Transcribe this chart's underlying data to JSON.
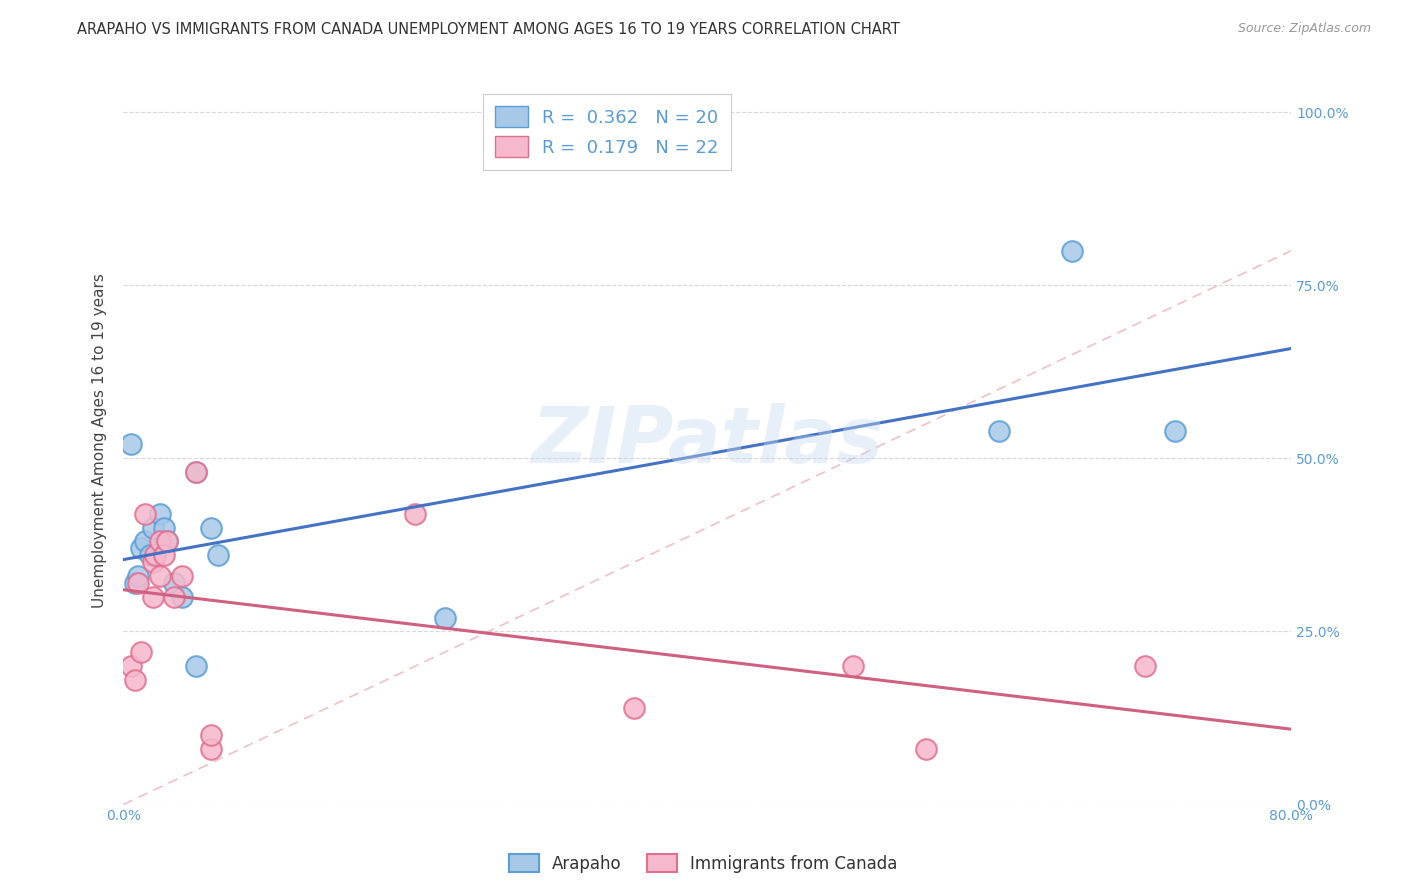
{
  "title": "ARAPAHO VS IMMIGRANTS FROM CANADA UNEMPLOYMENT AMONG AGES 16 TO 19 YEARS CORRELATION CHART",
  "source": "Source: ZipAtlas.com",
  "ylabel": "Unemployment Among Ages 16 to 19 years",
  "background_color": "#ffffff",
  "watermark": "ZIPatlas",
  "xlim": [
    0.0,
    0.8
  ],
  "ylim": [
    0.0,
    1.05
  ],
  "yticks": [
    0.0,
    0.25,
    0.5,
    0.75,
    1.0
  ],
  "ytick_labels": [
    "0.0%",
    "25.0%",
    "50.0%",
    "75.0%",
    "100.0%"
  ],
  "xticks": [
    0.0,
    0.1,
    0.2,
    0.3,
    0.4,
    0.5,
    0.6,
    0.7,
    0.8
  ],
  "xtick_labels": [
    "0.0%",
    "",
    "",
    "",
    "",
    "",
    "",
    "",
    "80.0%"
  ],
  "arapaho_color": "#a8c8e8",
  "arapaho_edge_color": "#5a9fd4",
  "canada_color": "#f5b8cc",
  "canada_edge_color": "#e07090",
  "regression_blue": "#4472c4",
  "regression_pink": "#d06080",
  "diagonal_color": "#cccccc",
  "R_arapaho": 0.362,
  "N_arapaho": 20,
  "R_canada": 0.179,
  "N_canada": 22,
  "legend_label_1": "Arapaho",
  "legend_label_2": "Immigrants from Canada",
  "arapaho_x": [
    0.005,
    0.008,
    0.01,
    0.012,
    0.015,
    0.018,
    0.02,
    0.025,
    0.028,
    0.03,
    0.035,
    0.04,
    0.05,
    0.05,
    0.06,
    0.065,
    0.22,
    0.6,
    0.65,
    0.72
  ],
  "arapaho_y": [
    0.52,
    0.32,
    0.33,
    0.37,
    0.38,
    0.36,
    0.4,
    0.42,
    0.4,
    0.38,
    0.32,
    0.3,
    0.48,
    0.2,
    0.4,
    0.36,
    0.27,
    0.54,
    0.8,
    0.54
  ],
  "canada_x": [
    0.005,
    0.008,
    0.01,
    0.012,
    0.015,
    0.02,
    0.02,
    0.022,
    0.025,
    0.025,
    0.028,
    0.03,
    0.035,
    0.04,
    0.05,
    0.06,
    0.06,
    0.2,
    0.35,
    0.5,
    0.55,
    0.7
  ],
  "canada_y": [
    0.2,
    0.18,
    0.32,
    0.22,
    0.42,
    0.35,
    0.3,
    0.36,
    0.38,
    0.33,
    0.36,
    0.38,
    0.3,
    0.33,
    0.48,
    0.08,
    0.1,
    0.42,
    0.14,
    0.2,
    0.08,
    0.2
  ],
  "title_fontsize": 10.5,
  "axis_label_fontsize": 11,
  "tick_fontsize": 10,
  "tick_color": "#5b9bd5",
  "legend_fontsize": 13,
  "legend_r_color": "#5b9bd5"
}
